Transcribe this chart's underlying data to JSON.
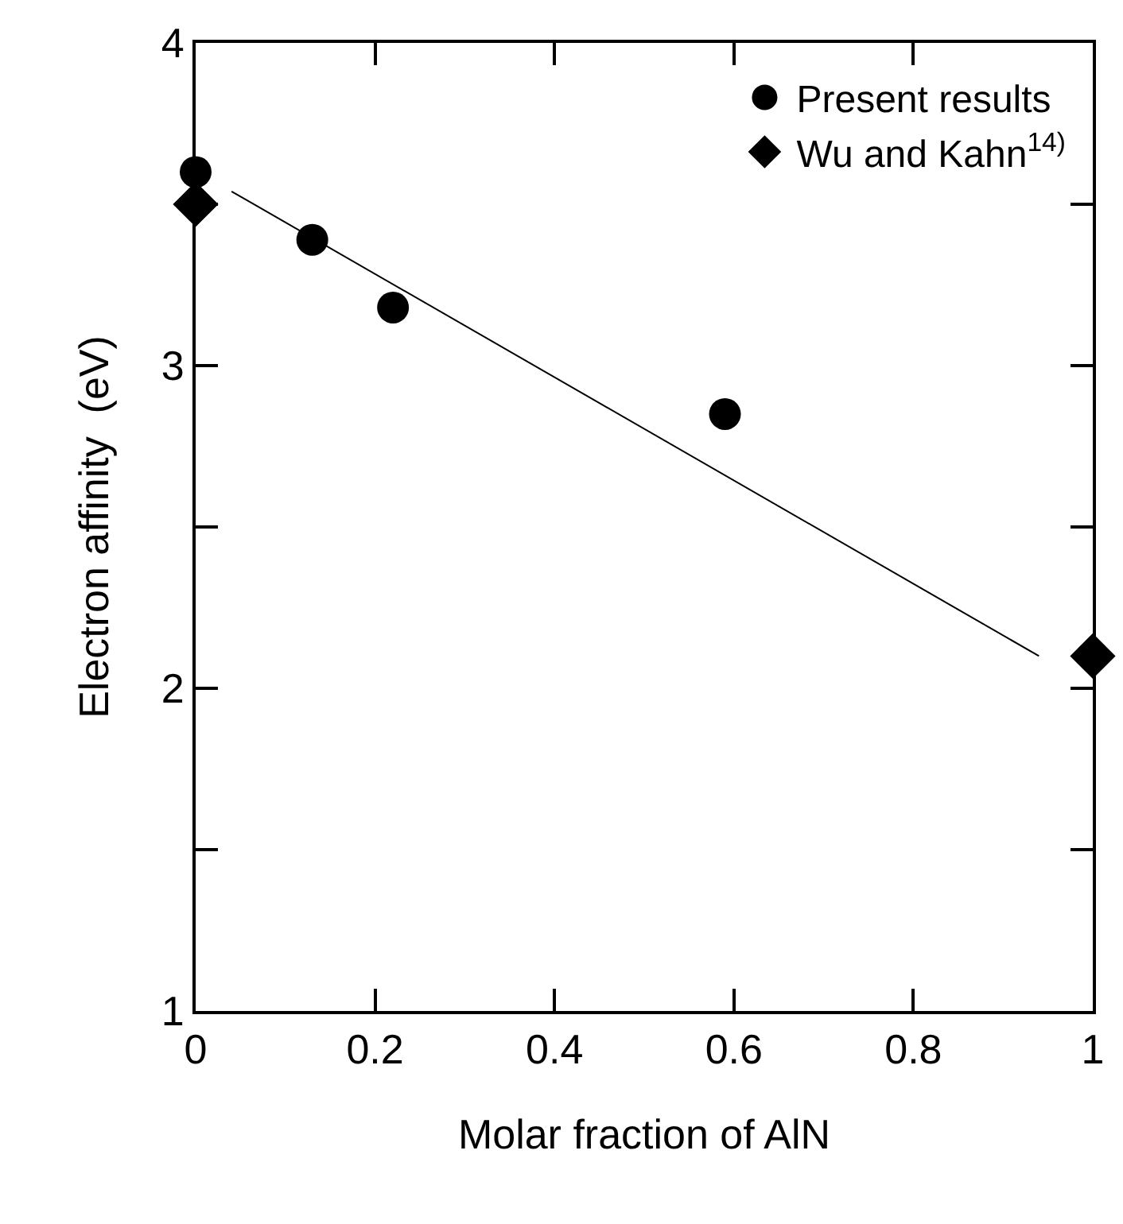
{
  "chart_data": {
    "type": "scatter",
    "xlabel": "Molar fraction of AlN",
    "ylabel": "Electron affinity  (eV)",
    "xlim": [
      0,
      1
    ],
    "ylim": [
      1,
      4
    ],
    "xticks": [
      0,
      0.2,
      0.4,
      0.6,
      0.8,
      1
    ],
    "yticks": [
      1,
      {
        "value": 1.5,
        "label": null
      },
      2,
      {
        "value": 2.5,
        "label": null
      },
      3,
      {
        "value": 3.5,
        "label": null
      },
      4
    ],
    "grid": false,
    "legend": "top right",
    "series": [
      {
        "name": "Present results",
        "marker": "circle",
        "color": "#000000",
        "x": [
          0,
          0.13,
          0.22,
          0.59
        ],
        "values": [
          3.6,
          3.39,
          3.18,
          2.85
        ]
      },
      {
        "name": "Wu and Kahn$^{14)}$",
        "marker": "diamond",
        "color": "#000000",
        "x": [
          0,
          1
        ],
        "values": [
          3.5,
          2.1
        ]
      },
      {
        "type": "line",
        "marker": "none",
        "color": "#000000",
        "x": [
          0.04,
          0.94
        ],
        "values": [
          3.54,
          2.1
        ]
      }
    ]
  }
}
